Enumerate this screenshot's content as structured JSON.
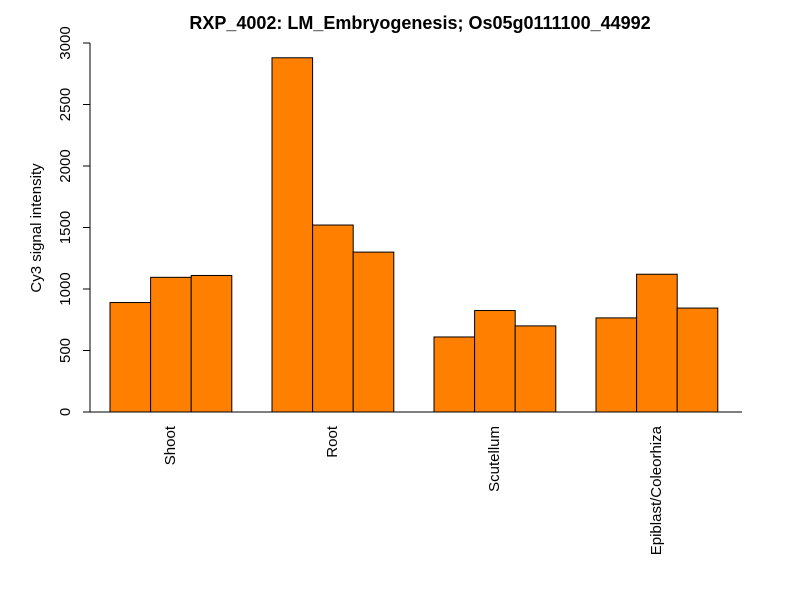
{
  "chart_data": {
    "type": "bar",
    "title": "RXP_4002: LM_Embryogenesis; Os05g0111100_44992",
    "ylabel": "Cy3 signal intensity",
    "xlabel": "",
    "ylim": [
      0,
      3000
    ],
    "yticks": [
      0,
      500,
      1000,
      1500,
      2000,
      2500,
      3000
    ],
    "categories": [
      "Shoot",
      "Root",
      "Scutellum",
      "Epiblast/Coleorhiza"
    ],
    "series": [
      {
        "values": [
          890,
          2880,
          610,
          765
        ]
      },
      {
        "values": [
          1095,
          1520,
          825,
          1120
        ]
      },
      {
        "values": [
          1110,
          1300,
          700,
          845
        ]
      }
    ],
    "bar_color": "#FF8000",
    "bar_border": "#000000",
    "grid": false,
    "legend": "none"
  }
}
